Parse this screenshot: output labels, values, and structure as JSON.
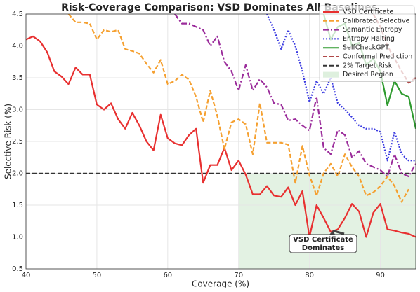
{
  "chart_data": {
    "type": "line",
    "title": "Risk-Coverage Comparison: VSD Dominates All Baselines",
    "x_label": "Coverage (%)",
    "y_label": "Selective Risk (%)",
    "xlim": [
      40,
      95
    ],
    "ylim": [
      0.5,
      4.5
    ],
    "xticks": [
      40,
      50,
      60,
      70,
      80,
      90
    ],
    "yticks": [
      0.5,
      {
        "value": 1,
        "label": "1.0"
      },
      1.5,
      {
        "value": 2,
        "label": "2.0"
      },
      2.5,
      {
        "value": 3,
        "label": "3.0"
      },
      3.5,
      {
        "value": 4,
        "label": "4.0"
      },
      4.5
    ],
    "grid": true,
    "legend": "upper right",
    "series": [
      {
        "name": "VSD Certificate",
        "color": "#e83030",
        "style": "solid",
        "x": [
          40,
          41,
          42,
          43,
          44,
          45,
          46,
          47,
          48,
          49,
          50,
          51,
          52,
          53,
          54,
          55,
          56,
          57,
          58,
          59,
          60,
          61,
          62,
          63,
          64,
          65,
          66,
          67,
          68,
          69,
          70,
          71,
          72,
          73,
          74,
          75,
          76,
          77,
          78,
          79,
          80,
          81,
          82,
          83,
          84,
          85,
          86,
          87,
          88,
          89,
          90,
          91,
          92,
          93,
          94,
          95
        ],
        "values": [
          4.1,
          4.15,
          4.07,
          3.9,
          3.6,
          3.52,
          3.4,
          3.66,
          3.55,
          3.55,
          3.08,
          3.0,
          3.1,
          2.85,
          2.7,
          2.95,
          2.75,
          2.5,
          2.36,
          2.92,
          2.55,
          2.47,
          2.44,
          2.6,
          2.7,
          1.85,
          2.13,
          2.13,
          2.4,
          2.05,
          2.2,
          1.98,
          1.67,
          1.67,
          1.8,
          1.65,
          1.63,
          1.78,
          1.5,
          1.72,
          1.0,
          1.5,
          1.3,
          1.08,
          1.12,
          1.3,
          1.52,
          1.4,
          1.0,
          1.38,
          1.52,
          1.12,
          1.1,
          1.07,
          1.05,
          1.0
        ]
      },
      {
        "name": "Calibrated Selective",
        "color": "#f5a030",
        "style": "dashed",
        "x": [
          46,
          47,
          48,
          49,
          50,
          51,
          52,
          53,
          54,
          55,
          56,
          57,
          58,
          59,
          60,
          61,
          62,
          63,
          64,
          65,
          66,
          67,
          68,
          69,
          70,
          71,
          72,
          73,
          74,
          75,
          76,
          77,
          78,
          79,
          80,
          81,
          82,
          83,
          84,
          85,
          86,
          87,
          88,
          89,
          90,
          91,
          92,
          93,
          94
        ],
        "values": [
          4.5,
          4.37,
          4.37,
          4.35,
          4.1,
          4.25,
          4.22,
          4.25,
          3.95,
          3.92,
          3.88,
          3.72,
          3.58,
          3.78,
          3.4,
          3.45,
          3.55,
          3.47,
          3.2,
          2.8,
          3.3,
          2.9,
          2.38,
          2.8,
          2.85,
          2.77,
          2.3,
          3.1,
          2.48,
          2.48,
          2.48,
          2.45,
          1.85,
          2.43,
          1.97,
          1.65,
          2.0,
          2.15,
          1.95,
          2.3,
          2.1,
          1.95,
          1.65,
          1.7,
          1.8,
          1.95,
          1.8,
          1.55,
          1.75
        ]
      },
      {
        "name": "Semantic Entropy",
        "color": "#9b2c9b",
        "style": "dashdot",
        "x": [
          61,
          62,
          63,
          64,
          65,
          66,
          67,
          68,
          69,
          70,
          71,
          72,
          73,
          74,
          75,
          76,
          77,
          78,
          79,
          80,
          81,
          82,
          83,
          84,
          85,
          86,
          87,
          88,
          89,
          90,
          91,
          92,
          93,
          94,
          95
        ],
        "values": [
          4.5,
          4.35,
          4.35,
          4.3,
          4.25,
          4.0,
          4.15,
          3.75,
          3.6,
          3.3,
          3.7,
          3.3,
          3.48,
          3.35,
          3.1,
          3.08,
          2.83,
          2.85,
          2.75,
          2.67,
          3.2,
          2.4,
          2.3,
          2.68,
          2.6,
          2.25,
          2.35,
          2.15,
          2.1,
          2.05,
          1.95,
          2.3,
          2.0,
          1.95,
          2.15
        ]
      },
      {
        "name": "Entropy Halting",
        "color": "#3a3ae0",
        "style": "dotted",
        "x": [
          74,
          75,
          76,
          77,
          78,
          79,
          80,
          81,
          82,
          83,
          84,
          85,
          86,
          87,
          88,
          89,
          90,
          91,
          92,
          93,
          94,
          95
        ],
        "values": [
          4.5,
          4.25,
          3.95,
          4.25,
          4.0,
          3.6,
          3.12,
          3.45,
          3.25,
          3.5,
          3.1,
          3.0,
          2.88,
          2.75,
          2.7,
          2.7,
          2.65,
          2.2,
          2.65,
          2.3,
          2.2,
          2.2
        ]
      },
      {
        "name": "SelfCheckGPT",
        "color": "#2e9a2e",
        "style": "solid",
        "x": [
          82,
          83,
          84,
          85,
          86,
          87,
          88,
          89,
          90,
          91,
          92,
          93,
          94,
          95
        ],
        "values": [
          4.5,
          4.1,
          4.3,
          4.35,
          4.0,
          4.05,
          3.7,
          3.8,
          3.6,
          3.07,
          3.45,
          3.25,
          3.2,
          2.7
        ]
      },
      {
        "name": "Conformal Prediction",
        "color": "#b04848",
        "style": "dashed",
        "x": [
          89,
          90,
          91,
          92,
          93,
          94,
          95
        ],
        "values": [
          4.5,
          4.3,
          4.0,
          3.8,
          3.6,
          3.42,
          3.5
        ]
      }
    ],
    "target": {
      "name": "2% Target Risk",
      "value": 2,
      "color": "#333333"
    },
    "region": {
      "name": "Desired Region",
      "x": [
        70,
        95
      ],
      "y": [
        0.5,
        2
      ],
      "color": "#c8e6c8"
    },
    "annotation": {
      "lines": [
        "VSD Certificate",
        "Dominates"
      ],
      "xy": [
        83.3,
        1.1
      ]
    }
  }
}
